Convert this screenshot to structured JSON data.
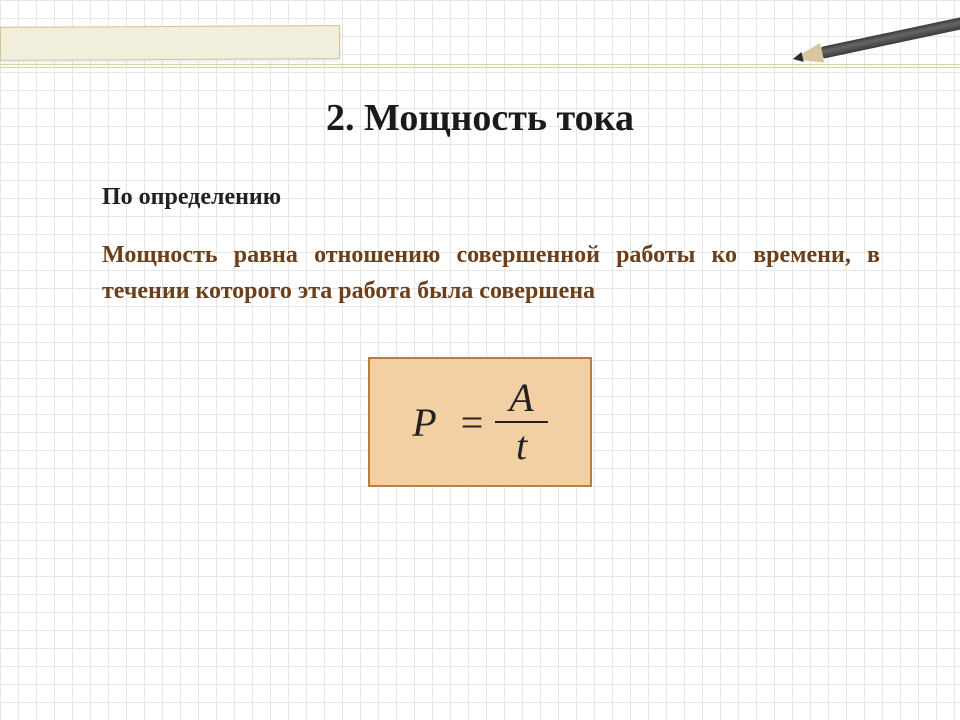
{
  "title": "2. Мощность тока",
  "subheading": "По определению",
  "definition": "Мощность равна отношению совершенной работы ко времени, в течении которого эта работа была совершена",
  "definition_color": "#6a3f1a",
  "formula": {
    "lhs": "P",
    "op": "=",
    "numerator": "A",
    "denominator": "t",
    "box_fill": "#f3cfa4",
    "box_border": "#b87f3d"
  }
}
